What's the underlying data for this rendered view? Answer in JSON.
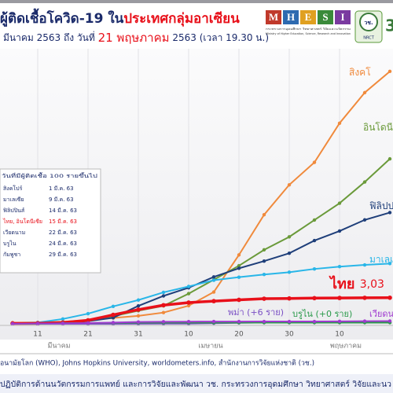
{
  "header": {
    "title_part1": "ผู้ติดเชื้อโควิด-19 ใน",
    "title_part2": "ประเทศกลุ่มอาเซียน",
    "subtitle_part1": "มีนาคม 2563 ถึง วันที่",
    "subtitle_date": "21 พฤษภาคม",
    "subtitle_part2": "2563 (เวลา 19.30 น.)",
    "logo_letters": [
      "M",
      "H",
      "E",
      "S",
      "I"
    ],
    "ministry_th": "กระทรวงการอุดมศึกษา วิทยาศาสตร์ วิจัยและนวัตกรรม",
    "ministry_en": "Ministry of Higher Education, Science, Research and Innovation",
    "nrct_th": "วช.",
    "nrct_en": "NRCT"
  },
  "chart_data": {
    "type": "line",
    "categories": [
      null,
      "11",
      null,
      "21",
      null,
      "31",
      null,
      "10",
      null,
      "20",
      null,
      "30",
      null,
      "10",
      null,
      null
    ],
    "month_labels": [
      "มีนาคม",
      "เมษายน",
      "พฤษภาคม"
    ],
    "ylim": [
      0,
      32000
    ],
    "series": [
      {
        "name": "สิงคโ",
        "color": "#f08a3c",
        "values": [
          130,
          166,
          243,
          432,
          683,
          926,
          1309,
          2108,
          3699,
          8014,
          12693,
          16169,
          18778,
          23336,
          26891,
          29364
        ]
      },
      {
        "name": "อินโดนี",
        "color": "#6a9a3a",
        "values": [
          4,
          27,
          134,
          450,
          893,
          1528,
          2092,
          3512,
          5136,
          6760,
          8607,
          10118,
          12071,
          14032,
          16496,
          19189
        ]
      },
      {
        "name": "ฟิลิปป",
        "color": "#1f3f7a",
        "values": [
          5,
          49,
          140,
          307,
          707,
          2084,
          3246,
          4195,
          5453,
          6459,
          7294,
          8212,
          9684,
          10794,
          12091,
          12942
        ]
      },
      {
        "name": "มาเลเ",
        "color": "#29b6e8",
        "values": [
          55,
          149,
          566,
          1183,
          2031,
          2766,
          3662,
          4346,
          5072,
          5425,
          5742,
          6002,
          6383,
          6656,
          6855,
          7009
        ]
      },
      {
        "name": "ไทย",
        "color": "#e8101a",
        "end_label": "3,03",
        "values": [
          48,
          59,
          147,
          411,
          1045,
          1651,
          2169,
          2473,
          2643,
          2792,
          2922,
          2954,
          2989,
          3009,
          3025,
          3037
        ]
      },
      {
        "name": "พม่า (+6 ราย)",
        "color": "#7a4fc4",
        "values": [
          0,
          0,
          0,
          0,
          5,
          15,
          21,
          27,
          74,
          119,
          146,
          151,
          161,
          180,
          182,
          199
        ]
      },
      {
        "name": "บรูไน (+0 ราย)",
        "color": "#2a9a4a",
        "values": [
          0,
          1,
          75,
          88,
          114,
          129,
          135,
          136,
          136,
          138,
          138,
          138,
          138,
          141,
          141,
          141
        ]
      },
      {
        "name": "เวียดน",
        "color": "#a03ad0",
        "values": [
          16,
          39,
          61,
          94,
          148,
          212,
          241,
          257,
          268,
          268,
          270,
          270,
          271,
          288,
          314,
          324
        ]
      }
    ]
  },
  "inset_table": {
    "header": "วันที่มีผู้ติดเชื้อ 100 รายขึ้นไป",
    "rows": [
      [
        "สิงคโปร์",
        "1 มี.ค. 63"
      ],
      [
        "มาเลเซีย",
        "9 มี.ค. 63"
      ],
      [
        "ฟิลิปปินส์",
        "14 มี.ค. 63"
      ],
      [
        "ไทย, อินโดนีเซีย",
        "15 มี.ค. 63"
      ],
      [
        "เวียดนาม",
        "22 มี.ค. 63"
      ],
      [
        "บรูไน",
        "24 มี.ค. 63"
      ],
      [
        "กัมพูชา",
        "29 มี.ค. 63"
      ]
    ]
  },
  "footer": {
    "source": "อนามัยโลก (WHO), Johns Hopkins University, worldometers.info, สำนักงานการวิจัยแห่งชาติ (วช.)",
    "bottom": "ปฏิบัติการด้านนวัตกรรมการแพทย์ และการวิจัยและพัฒนา วช. กระทรวงการอุดมศึกษา วิทยาศาสตร์ วิจัยและนว"
  }
}
